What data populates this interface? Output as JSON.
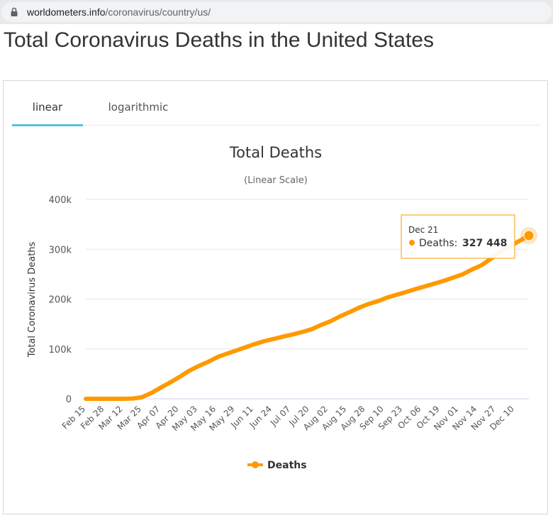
{
  "browser": {
    "url_host": "worldometers.info",
    "url_path": "/coronavirus/country/us/"
  },
  "page": {
    "title": "Total Coronavirus Deaths in the United States"
  },
  "tabs": [
    {
      "label": "linear",
      "active": true
    },
    {
      "label": "logarithmic",
      "active": false
    }
  ],
  "tooltip": {
    "date": "Dec 21",
    "series": "Deaths",
    "value": "327 448"
  },
  "colors": {
    "series": "#ff9900",
    "tab_accent": "#5bc0de"
  },
  "chart_data": {
    "type": "line",
    "title": "Total Deaths",
    "subtitle": "(Linear Scale)",
    "ylabel": "Total Coronavirus Deaths",
    "xlabel": "",
    "ylim": [
      0,
      400000
    ],
    "yticks": [
      0,
      100000,
      200000,
      300000,
      400000
    ],
    "ytick_labels": [
      "0",
      "100k",
      "200k",
      "300k",
      "400k"
    ],
    "x_start": "Feb 15",
    "x_end": "Dec 21",
    "x_tick_labels": [
      "Feb 15",
      "Feb 28",
      "Mar 12",
      "Mar 25",
      "Apr 07",
      "Apr 20",
      "May 03",
      "May 16",
      "May 29",
      "Jun 11",
      "Jun 24",
      "Jul 07",
      "Jul 20",
      "Aug 02",
      "Aug 15",
      "Aug 28",
      "Sep 10",
      "Sep 23",
      "Oct 06",
      "Oct 19",
      "Nov 01",
      "Nov 14",
      "Nov 27",
      "Dec 10"
    ],
    "legend": [
      "Deaths"
    ],
    "series": [
      {
        "name": "Deaths",
        "x_day": [
          0,
          13,
          26,
          33,
          39,
          46,
          52,
          59,
          66,
          72,
          79,
          86,
          92,
          99,
          105,
          112,
          118,
          125,
          131,
          138,
          144,
          151,
          158,
          164,
          171,
          177,
          184,
          190,
          197,
          204,
          210,
          217,
          223,
          230,
          236,
          243,
          250,
          256,
          263,
          269,
          276,
          282,
          289,
          295,
          302,
          309
        ],
        "values": [
          0,
          0,
          50,
          600,
          3000,
          12000,
          22000,
          33000,
          45000,
          56000,
          66000,
          75000,
          84000,
          91000,
          97000,
          104000,
          110000,
          116000,
          120000,
          125000,
          129000,
          134000,
          140000,
          148000,
          156000,
          165000,
          174000,
          182000,
          190000,
          196000,
          203000,
          209000,
          214000,
          220000,
          225000,
          231000,
          237000,
          243000,
          250000,
          259000,
          268000,
          280000,
          294000,
          305000,
          316000,
          327448
        ]
      }
    ]
  }
}
